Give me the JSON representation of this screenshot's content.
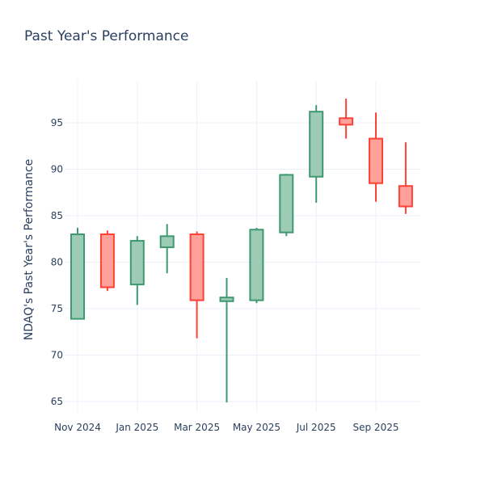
{
  "chart_data": {
    "type": "candlestick",
    "title": "Past Year's Performance",
    "xlabel": "",
    "ylabel": "NDAQ's Past Year's Performance",
    "ylim": [
      63.3,
      99.5
    ],
    "grid": true,
    "legend": "none",
    "y_ticks": [
      65,
      70,
      75,
      80,
      85,
      90,
      95
    ],
    "x_ticks": [
      {
        "month": "2024-11",
        "label": "Nov 2024"
      },
      {
        "month": "2025-01",
        "label": "Jan 2025"
      },
      {
        "month": "2025-03",
        "label": "Mar 2025"
      },
      {
        "month": "2025-05",
        "label": "May 2025"
      },
      {
        "month": "2025-07",
        "label": "Jul 2025"
      },
      {
        "month": "2025-09",
        "label": "Sep 2025"
      }
    ],
    "colors": {
      "increasing": "#3d9970",
      "increasing_fill": "#9ecbb5",
      "decreasing": "#ff4136",
      "decreasing_fill": "#ffa09b"
    },
    "candles": [
      {
        "month": "2024-11",
        "open": 73.9,
        "high": 83.7,
        "low": 73.9,
        "close": 83.0
      },
      {
        "month": "2024-12",
        "open": 83.0,
        "high": 83.4,
        "low": 76.9,
        "close": 77.3
      },
      {
        "month": "2025-01",
        "open": 77.6,
        "high": 82.8,
        "low": 75.4,
        "close": 82.3
      },
      {
        "month": "2025-02",
        "open": 81.6,
        "high": 84.1,
        "low": 78.8,
        "close": 82.8
      },
      {
        "month": "2025-03",
        "open": 83.0,
        "high": 83.3,
        "low": 71.8,
        "close": 75.9
      },
      {
        "month": "2025-04",
        "open": 75.8,
        "high": 78.3,
        "low": 64.9,
        "close": 76.2
      },
      {
        "month": "2025-05",
        "open": 75.9,
        "high": 83.7,
        "low": 75.6,
        "close": 83.5
      },
      {
        "month": "2025-06",
        "open": 83.2,
        "high": 89.5,
        "low": 82.8,
        "close": 89.4
      },
      {
        "month": "2025-07",
        "open": 89.2,
        "high": 96.9,
        "low": 86.4,
        "close": 96.2
      },
      {
        "month": "2025-08",
        "open": 95.5,
        "high": 97.6,
        "low": 93.3,
        "close": 94.8
      },
      {
        "month": "2025-09",
        "open": 93.3,
        "high": 96.1,
        "low": 86.5,
        "close": 88.5
      },
      {
        "month": "2025-10",
        "open": 88.2,
        "high": 92.9,
        "low": 85.2,
        "close": 86.0
      }
    ]
  }
}
